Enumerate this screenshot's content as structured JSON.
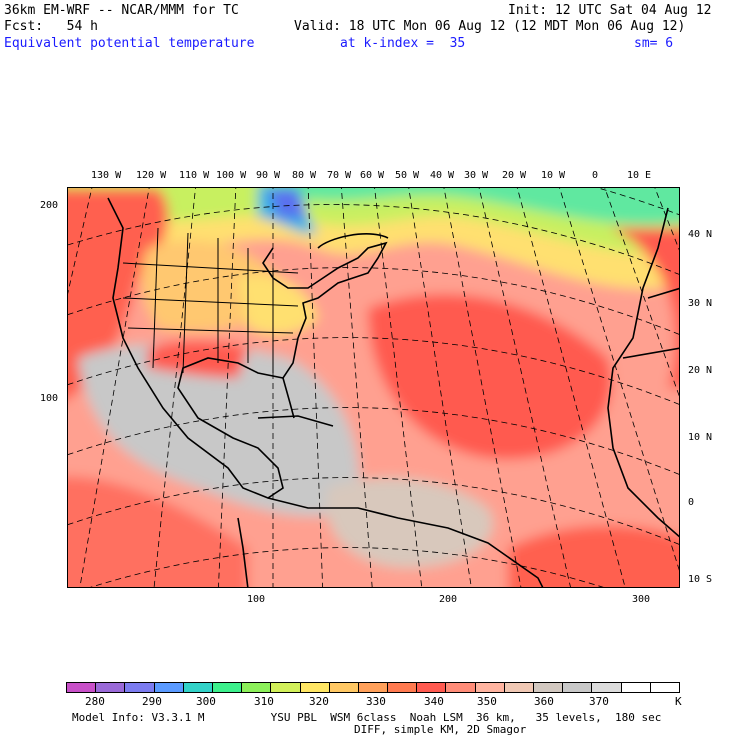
{
  "header": {
    "model": "36km EM-WRF -- NCAR/MMM for TC",
    "init": "Init: 12 UTC Sat 04 Aug 12",
    "fcst": "Fcst:   54 h",
    "valid": "Valid: 18 UTC Mon 06 Aug 12 (12 MDT Mon 06 Aug 12)",
    "field": "Equivalent potential temperature",
    "level": "at k-index =  35",
    "smooth": "sm= 6"
  },
  "map": {
    "lon_labels": [
      "130 W",
      "120 W",
      "110 W",
      "100 W",
      "90 W",
      "80 W",
      "70 W",
      "60 W",
      "50 W",
      "40 W",
      "30 W",
      "20 W",
      "10 W",
      "0",
      "10 E"
    ],
    "lat_labels": [
      "40 N",
      "30 N",
      "20 N",
      "10 N",
      "0",
      "10 S"
    ],
    "y_grid_labels": [
      "200",
      "100"
    ],
    "x_grid_labels": [
      "100",
      "200",
      "300"
    ]
  },
  "legend": {
    "unit": "K",
    "labels": [
      "280",
      "290",
      "300",
      "310",
      "320",
      "330",
      "340",
      "350",
      "360",
      "370"
    ],
    "colors": [
      "#c850c8",
      "#9a6ad8",
      "#7c7cf0",
      "#5a9aff",
      "#32d2c8",
      "#3cf08c",
      "#8cf05a",
      "#d2f05a",
      "#ffe664",
      "#ffc864",
      "#ffa05a",
      "#ff7a50",
      "#ff5a50",
      "#ff8c78",
      "#ffb4a0",
      "#f0c8b4",
      "#d2c8c0",
      "#c8c8c8",
      "#dcdcdc",
      "#ffffff",
      "#ffffff"
    ]
  },
  "footer": {
    "line1": "Model Info: V3.3.1 M          YSU PBL  WSM 6class  Noah LSM  36 km,   35 levels,  180 sec",
    "line2": "DIFF, simple KM, 2D Smagor"
  }
}
